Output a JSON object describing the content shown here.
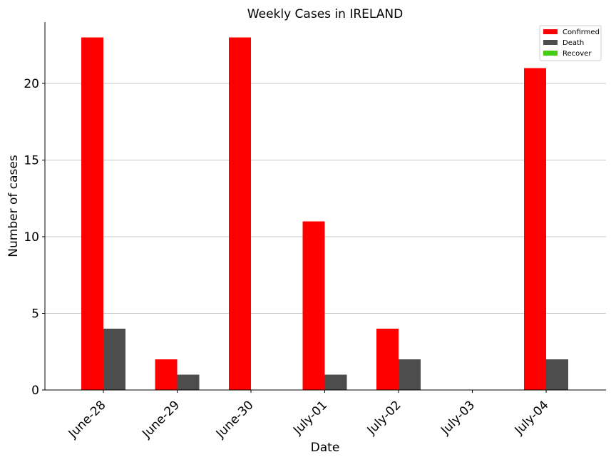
{
  "chart_data": {
    "type": "bar",
    "title": "Weekly Cases in IRELAND",
    "xlabel": "Date",
    "ylabel": "Number of cases",
    "categories": [
      "June-28",
      "June-29",
      "June-30",
      "July-01",
      "July-02",
      "July-03",
      "July-04"
    ],
    "series": [
      {
        "name": "Confirmed",
        "color": "#ff0000",
        "values": [
          23,
          2,
          23,
          11,
          4,
          0,
          21
        ]
      },
      {
        "name": "Death",
        "color": "#4d4d4d",
        "values": [
          4,
          1,
          0,
          1,
          2,
          0,
          2
        ]
      },
      {
        "name": "Recover",
        "color": "#44cc11",
        "values": [
          0,
          0,
          0,
          0,
          0,
          0,
          0
        ]
      }
    ],
    "ylim": [
      0,
      24
    ],
    "yticks": [
      0,
      5,
      10,
      15,
      20
    ],
    "grid": "horizontal",
    "legend_position": "top-right"
  }
}
